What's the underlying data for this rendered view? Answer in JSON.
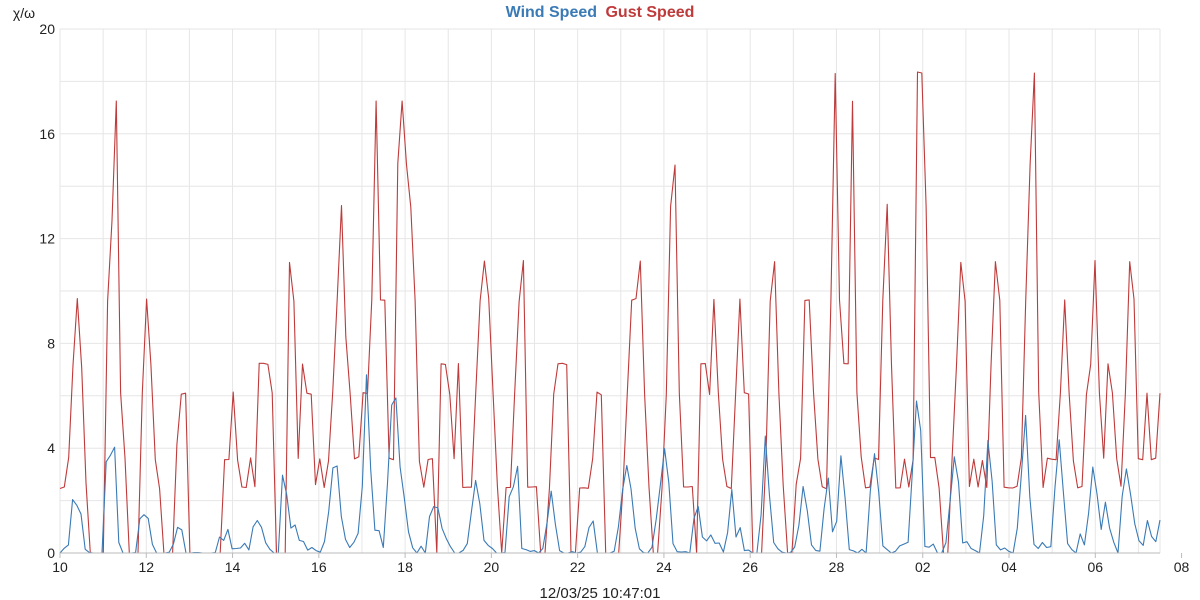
{
  "chart_data": {
    "type": "line",
    "title": "",
    "legend": {
      "placement": "top-center",
      "entries": [
        "Wind Speed",
        "Gust Speed"
      ]
    },
    "ylabel": "χ/ω",
    "xlabel": "12/03/25 10:47:01",
    "ylim": [
      0,
      20
    ],
    "xlim": [
      0,
      306
    ],
    "y_ticks": [
      0,
      4,
      8,
      12,
      16,
      20
    ],
    "x_tick_labels": [
      "10",
      "12",
      "14",
      "16",
      "18",
      "20",
      "22",
      "24",
      "26",
      "28",
      "02",
      "04",
      "06",
      "08",
      "10",
      "12"
    ],
    "grid": true,
    "series": [
      {
        "name": "Wind Speed",
        "color": "#3a7ab5",
        "values": [
          0.0,
          0.18,
          0.31,
          2.04,
          1.82,
          1.49,
          0.14,
          0.02,
          0.0,
          0.0,
          0.0,
          3.48,
          3.73,
          4.04,
          0.4,
          0.0,
          0.0,
          0.0,
          0.02,
          1.3,
          1.46,
          1.32,
          0.33,
          0.0,
          0.0,
          0.0,
          0.03,
          0.34,
          0.98,
          0.88,
          0.0,
          0.0,
          0.02,
          0.02,
          0.0,
          0.0,
          0.0,
          0.02,
          0.61,
          0.48,
          0.9,
          0.16,
          0.17,
          0.19,
          0.37,
          0.12,
          1.0,
          1.24,
          0.98,
          0.39,
          0.14,
          0.0,
          0.0,
          2.97,
          2.23,
          0.95,
          1.07,
          0.48,
          0.44,
          0.11,
          0.21,
          0.09,
          0.03,
          0.44,
          1.58,
          3.25,
          3.32,
          1.4,
          0.52,
          0.21,
          0.41,
          0.75,
          2.54,
          6.8,
          3.19,
          0.87,
          0.85,
          0.21,
          2.67,
          5.65,
          5.92,
          3.28,
          2.1,
          0.81,
          0.2,
          0.0,
          0.26,
          0.0,
          1.39,
          1.77,
          1.72,
          0.94,
          0.55,
          0.24,
          0.0,
          0.0,
          0.1,
          0.36,
          1.6,
          2.77,
          1.88,
          0.48,
          0.29,
          0.17,
          0.0,
          0.0,
          0.02,
          2.15,
          2.53,
          3.31,
          0.17,
          0.13,
          0.06,
          0.09,
          0.0,
          0.17,
          1.15,
          2.36,
          1.09,
          0.09,
          0.0,
          0.0,
          0.05,
          0.0,
          0.03,
          0.24,
          0.97,
          1.22,
          0.0,
          0.0,
          0.0,
          0.0,
          0.07,
          1.0,
          2.41,
          3.34,
          2.45,
          0.94,
          0.16,
          0.01,
          0.0,
          0.22,
          1.29,
          2.61,
          3.98,
          2.69,
          0.36,
          0.05,
          0.04,
          0.05,
          0.0,
          1.33,
          1.78,
          0.61,
          0.46,
          0.69,
          0.37,
          0.38,
          0.04,
          0.78,
          2.42,
          0.61,
          0.97,
          0.09,
          0.11,
          0.0,
          0.0,
          1.46,
          4.46,
          2.18,
          0.4,
          0.16,
          0.03,
          0.0,
          0.02,
          0.23,
          1.06,
          2.54,
          1.61,
          0.31,
          0.1,
          0.07,
          1.69,
          2.86,
          0.81,
          1.21,
          3.71,
          2.09,
          0.13,
          0.08,
          0.0,
          0.14,
          0.0,
          2.36,
          3.79,
          2.33,
          0.27,
          0.13,
          0.0,
          0.07,
          0.27,
          0.34,
          0.41,
          3.06,
          5.8,
          4.67,
          0.25,
          0.22,
          0.34,
          0.0,
          0.0,
          0.39,
          1.99,
          3.67,
          2.71,
          0.38,
          0.43,
          0.17,
          0.09,
          0.0,
          1.42,
          4.29,
          2.75,
          0.31,
          0.12,
          0.19,
          0.06,
          0.0,
          0.95,
          3.08,
          5.25,
          2.15,
          0.33,
          0.17,
          0.4,
          0.21,
          0.24,
          2.51,
          4.32,
          2.31,
          0.36,
          0.13,
          0.0,
          0.73,
          0.31,
          1.52,
          3.28,
          2.26,
          0.9,
          1.94,
          0.95,
          0.41,
          0.0,
          2.17,
          3.21,
          2.23,
          1.11,
          0.47,
          0.29,
          1.24,
          0.63,
          0.43,
          1.26
        ]
      },
      {
        "name": "Gust Speed",
        "color": "#bf3a3a",
        "values": [
          2.46,
          2.52,
          3.65,
          7.17,
          9.71,
          7.07,
          2.68,
          0.0,
          0.0,
          0.0,
          0.0,
          9.61,
          12.69,
          17.25,
          6.12,
          3.62,
          0.0,
          0.0,
          0.0,
          6.11,
          9.69,
          7.2,
          3.56,
          2.45,
          0.0,
          0.0,
          0.0,
          4.14,
          6.06,
          6.1,
          0.0,
          0.0,
          0.0,
          0.0,
          0.0,
          0.0,
          0.0,
          0.0,
          3.56,
          3.57,
          6.14,
          3.55,
          2.52,
          2.5,
          3.63,
          2.53,
          7.24,
          7.24,
          7.2,
          6.11,
          0.0,
          0.0,
          0.0,
          11.09,
          9.61,
          3.61,
          7.21,
          6.1,
          6.06,
          2.61,
          3.59,
          2.5,
          3.51,
          6.2,
          9.69,
          13.26,
          8.26,
          6.05,
          3.59,
          3.67,
          6.12,
          6.09,
          9.68,
          17.25,
          9.66,
          9.65,
          3.62,
          3.56,
          14.87,
          17.25,
          14.82,
          13.2,
          9.64,
          3.5,
          2.51,
          3.57,
          3.6,
          0.0,
          7.22,
          7.2,
          6.05,
          3.6,
          7.23,
          2.5,
          2.51,
          2.51,
          6.09,
          9.62,
          11.14,
          9.73,
          6.07,
          2.55,
          0.0,
          2.5,
          2.5,
          6.13,
          9.59,
          11.16,
          2.51,
          2.52,
          2.53,
          0.0,
          0.0,
          2.45,
          6.06,
          7.22,
          7.24,
          7.19,
          0.0,
          0.0,
          2.48,
          2.49,
          2.47,
          3.61,
          6.14,
          6.04,
          0.0,
          0.0,
          0.0,
          0.0,
          2.53,
          6.11,
          9.65,
          9.71,
          11.14,
          6.07,
          2.51,
          0.0,
          0.0,
          2.46,
          6.05,
          13.23,
          14.81,
          6.11,
          2.52,
          2.52,
          2.54,
          0.0,
          7.22,
          7.23,
          6.05,
          9.68,
          6.13,
          3.58,
          2.54,
          2.46,
          6.06,
          9.69,
          6.12,
          6.07,
          0.0,
          0.0,
          0.0,
          3.58,
          9.61,
          11.12,
          6.09,
          2.58,
          0.0,
          0.0,
          2.62,
          3.61,
          9.64,
          9.66,
          6.14,
          3.58,
          2.53,
          2.45,
          9.63,
          18.3,
          9.66,
          7.23,
          7.22,
          17.24,
          6.12,
          3.67,
          2.49,
          2.51,
          3.63,
          3.57,
          9.65,
          13.31,
          7.17,
          2.48,
          2.49,
          3.58,
          2.52,
          3.55,
          18.36,
          18.32,
          13.25,
          3.64,
          3.65,
          2.48,
          0.0,
          0.0,
          3.62,
          7.17,
          11.09,
          9.61,
          2.54,
          3.58,
          2.52,
          3.53,
          2.5,
          7.23,
          11.12,
          9.64,
          2.51,
          2.49,
          2.48,
          2.55,
          3.65,
          9.61,
          14.82,
          18.32,
          6.14,
          2.5,
          3.62,
          3.58,
          3.56,
          6.11,
          9.66,
          6.11,
          3.51,
          2.49,
          2.54,
          6.04,
          7.2,
          11.16,
          6.11,
          3.62,
          7.22,
          6.11,
          3.6,
          2.55,
          6.11,
          11.12,
          9.69,
          3.6,
          3.56,
          6.1,
          3.56,
          3.62,
          6.1
        ]
      }
    ]
  }
}
